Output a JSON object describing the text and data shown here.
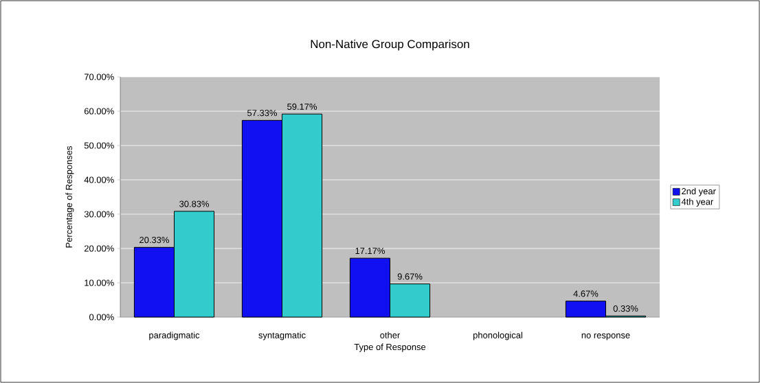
{
  "chart_data": {
    "type": "bar",
    "title": "Non-Native Group Comparison",
    "xlabel": "Type of Response",
    "ylabel": "Percentage of Responses",
    "categories": [
      "paradigmatic",
      "syntagmatic",
      "other",
      "phonological",
      "no response"
    ],
    "series": [
      {
        "name": "2nd year",
        "color": "#1010f0",
        "values": [
          20.33,
          57.33,
          17.17,
          null,
          4.67
        ],
        "value_labels": [
          "20.33%",
          "57.33%",
          "17.17%",
          null,
          "4.67%"
        ]
      },
      {
        "name": "4th year",
        "color": "#33cccc",
        "values": [
          30.83,
          59.17,
          9.67,
          null,
          0.33
        ],
        "value_labels": [
          "30.83%",
          "59.17%",
          "9.67%",
          null,
          "0.33%"
        ]
      }
    ],
    "ylim": [
      0,
      70
    ],
    "yticks": [
      {
        "value": 0,
        "label": "0.00%"
      },
      {
        "value": 10,
        "label": "10.00%"
      },
      {
        "value": 20,
        "label": "20.00%"
      },
      {
        "value": 30,
        "label": "30.00%"
      },
      {
        "value": 40,
        "label": "40.00%"
      },
      {
        "value": 50,
        "label": "50.00%"
      },
      {
        "value": 60,
        "label": "60.00%"
      },
      {
        "value": 70,
        "label": "70.00%"
      }
    ],
    "grid": "y",
    "legend": "right"
  }
}
